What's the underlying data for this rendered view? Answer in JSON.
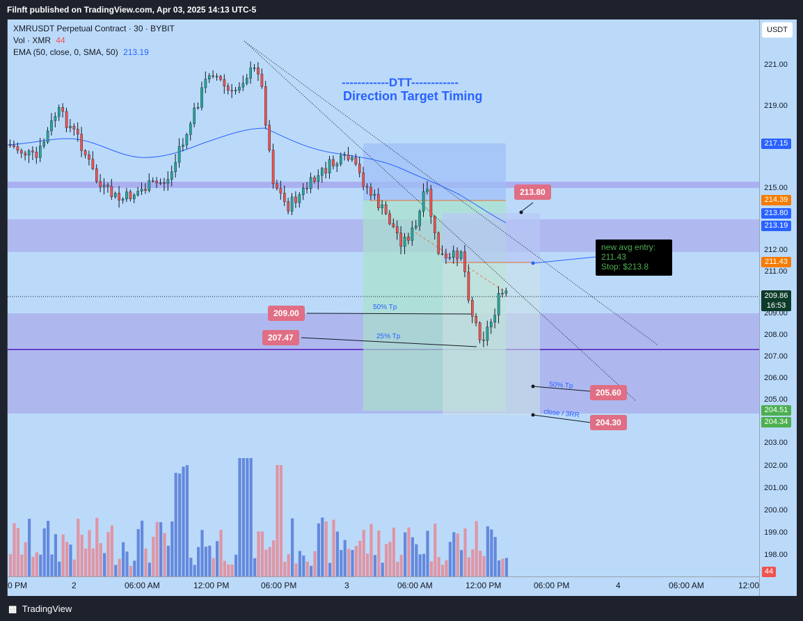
{
  "header": {
    "published": "Filnft published on TradingView.com, Apr 03, 2025 14:13 UTC-5"
  },
  "legend": {
    "symbol": "XMRUSDT Perpetual Contract · 30 · BYBIT",
    "vol_label": "Vol · XMR",
    "vol_value": "44",
    "ema_label": "EMA (50, close, 0, SMA, 50)",
    "ema_value": "213.19"
  },
  "annotation": {
    "dtt_line": "------------DTT------------",
    "dtt_subtitle": "Direction Target Timing",
    "entry_title": "new avg entry:",
    "entry_value": "211.43",
    "entry_stop": "Stop: $213.8",
    "tp50_a": "50% Tp",
    "tp25": "25% Tp",
    "tp50_b": "50% Tp",
    "close_rr": "close / 3RR"
  },
  "callouts": [
    "213.80",
    "209.00",
    "207.47",
    "205.60",
    "204.30"
  ],
  "price_axis": {
    "unit_button": "USDT",
    "ticks": [
      "221.00",
      "219.00",
      "215.00",
      "212.00",
      "211.00",
      "209.00",
      "208.00",
      "207.00",
      "206.00",
      "205.00",
      "203.00",
      "202.00",
      "201.00",
      "200.00",
      "199.00",
      "198.00"
    ],
    "labels": {
      "p217": "217.15",
      "p21439": "214.39",
      "p21380": "213.80",
      "p21319": "213.19",
      "p21143": "211.43",
      "last_price": "209.86",
      "countdown": "16:53",
      "p20451": "204.51",
      "p20434": "204.34",
      "vol": "44"
    }
  },
  "time_axis": [
    "0 PM",
    "2",
    "06:00 AM",
    "12:00 PM",
    "06:00 PM",
    "3",
    "06:00 AM",
    "12:00 PM",
    "06:00 PM",
    "4",
    "06:00 AM",
    "12:00"
  ],
  "footer": {
    "brand": "TradingView"
  },
  "colors": {
    "up": "#26a69a",
    "down": "#ef5350",
    "ema": "#2962ff",
    "background": "#bbdafa"
  }
}
